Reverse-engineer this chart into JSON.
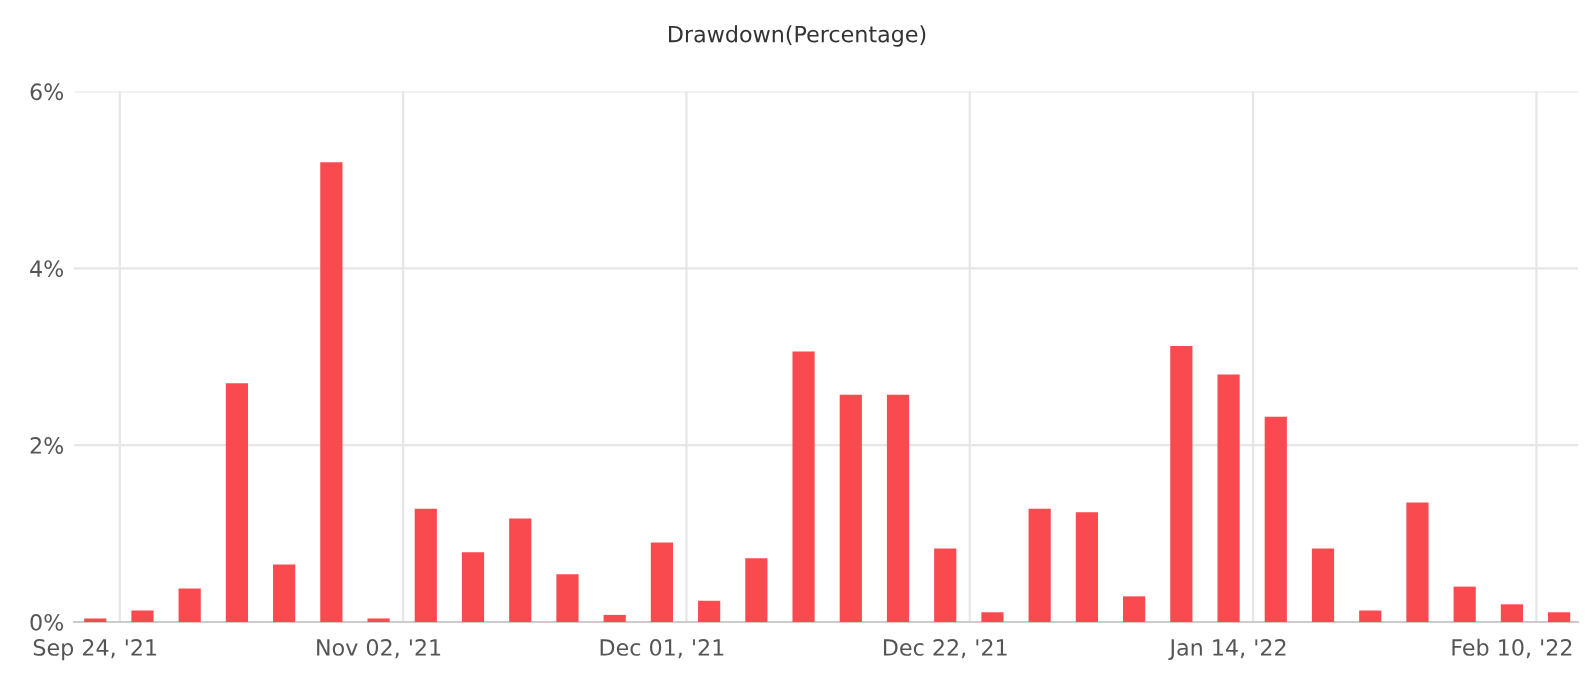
{
  "chart_data": {
    "type": "bar",
    "title": "Drawdown(Percentage)",
    "categories": [
      "Sep 24, '21",
      null,
      null,
      null,
      null,
      null,
      "Nov 02, '21",
      null,
      null,
      null,
      null,
      null,
      "Dec 01, '21",
      null,
      null,
      null,
      null,
      null,
      "Dec 22, '21",
      null,
      null,
      null,
      null,
      null,
      "Jan 14, '22",
      null,
      null,
      null,
      null,
      null,
      "Feb 10, '22",
      null
    ],
    "values": [
      0.04,
      0.13,
      0.38,
      2.7,
      0.65,
      5.2,
      0.04,
      1.28,
      0.79,
      1.17,
      0.54,
      0.08,
      0.9,
      0.24,
      0.72,
      3.06,
      2.57,
      2.57,
      0.83,
      0.11,
      1.28,
      1.24,
      0.29,
      3.12,
      2.8,
      2.32,
      0.83,
      0.13,
      1.35,
      0.4,
      0.2,
      0.11
    ],
    "color": "#f84a4f",
    "ylim": [
      0,
      6
    ],
    "yticks": [
      {
        "value": 0,
        "label": "0%"
      },
      {
        "value": 2,
        "label": "2%"
      },
      {
        "value": 4,
        "label": "4%"
      },
      {
        "value": 6,
        "label": "6%"
      }
    ],
    "grid": true
  }
}
